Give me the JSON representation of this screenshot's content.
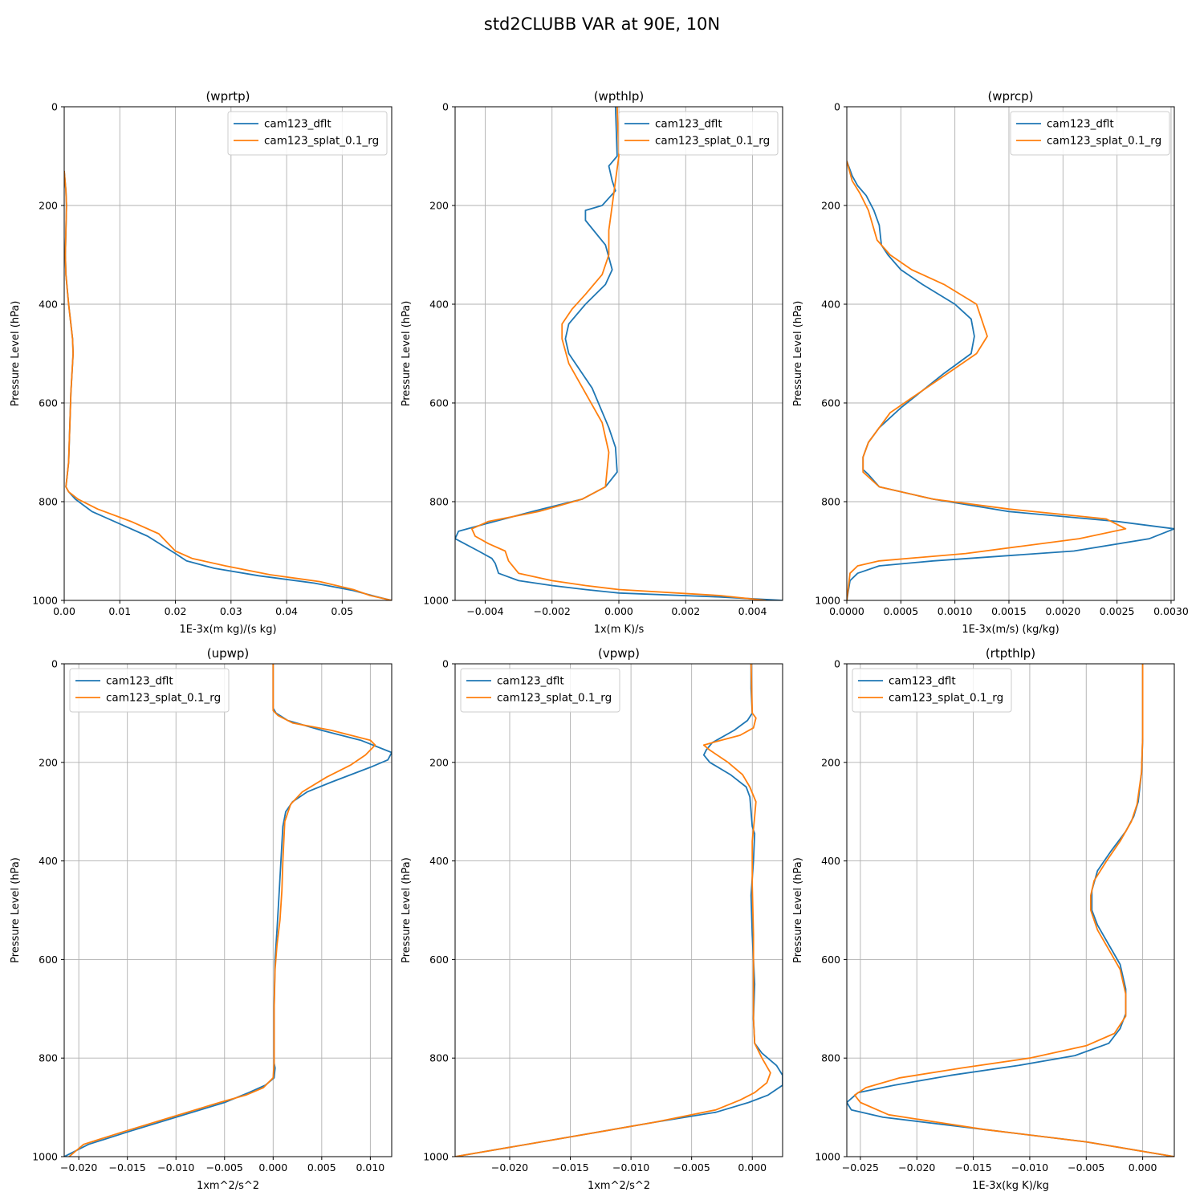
{
  "suptitle": "std2CLUBB VAR at 90E, 10N",
  "colors": {
    "dflt": "#1f77b4",
    "splat": "#ff7f0e"
  },
  "chart_data": [
    {
      "type": "line",
      "title": "(wprtp)",
      "xlabel": "1E-3x(m kg)/(s kg)",
      "ylabel": "Pressure Level (hPa)",
      "xlim": [
        0.0,
        0.0589
      ],
      "ylim": [
        1000,
        0
      ],
      "xticks": [
        0.0,
        0.01,
        0.02,
        0.03,
        0.04,
        0.05
      ],
      "xticklabels": [
        "0.00",
        "0.01",
        "0.02",
        "0.03",
        "0.04",
        "0.05"
      ],
      "yticks": [
        0,
        200,
        400,
        600,
        800,
        1000
      ],
      "yticklabels": [
        "0",
        "200",
        "400",
        "600",
        "800",
        "1000"
      ],
      "legend": "top-right",
      "grid": true,
      "series": [
        {
          "name": "cam123_dflt",
          "color": "#1f77b4",
          "x": [
            0.0,
            0.0003,
            0.0004,
            0.0003,
            0.0002,
            0.0003,
            0.0008,
            0.0015,
            0.0016,
            0.0012,
            0.001,
            0.0008,
            0.0005,
            0.0003,
            0.0008,
            0.002,
            0.005,
            0.01,
            0.015,
            0.02,
            0.022,
            0.027,
            0.035,
            0.045,
            0.052,
            0.056,
            0.0589
          ],
          "y": [
            130,
            170,
            200,
            250,
            300,
            340,
            400,
            470,
            500,
            580,
            650,
            720,
            750,
            770,
            780,
            795,
            820,
            845,
            870,
            905,
            920,
            935,
            950,
            965,
            980,
            992,
            1000
          ]
        },
        {
          "name": "cam123_splat_0.1_rg",
          "color": "#ff7f0e",
          "x": [
            0.0,
            0.0003,
            0.0004,
            0.0003,
            0.0002,
            0.0003,
            0.0008,
            0.0015,
            0.0016,
            0.0012,
            0.001,
            0.0008,
            0.0005,
            0.0003,
            0.0008,
            0.0025,
            0.006,
            0.012,
            0.017,
            0.02,
            0.023,
            0.029,
            0.037,
            0.046,
            0.052,
            0.055,
            0.0589
          ],
          "y": [
            130,
            170,
            200,
            250,
            300,
            340,
            400,
            470,
            500,
            580,
            650,
            720,
            750,
            770,
            780,
            795,
            815,
            840,
            865,
            900,
            915,
            930,
            948,
            962,
            978,
            990,
            1000
          ]
        }
      ]
    },
    {
      "type": "line",
      "title": "(wpthlp)",
      "xlabel": "1x(m K)/s",
      "ylabel": "Pressure Level (hPa)",
      "xlim": [
        -0.0049,
        0.0049
      ],
      "ylim": [
        1000,
        0
      ],
      "xticks": [
        -0.004,
        -0.002,
        0.0,
        0.002,
        0.004
      ],
      "xticklabels": [
        "−0.004",
        "−0.002",
        "0.000",
        "0.002",
        "0.004"
      ],
      "yticks": [
        0,
        200,
        400,
        600,
        800,
        1000
      ],
      "yticklabels": [
        "0",
        "200",
        "400",
        "600",
        "800",
        "1000"
      ],
      "legend": "top-right",
      "grid": true,
      "series": [
        {
          "name": "cam123_dflt",
          "color": "#1f77b4",
          "x": [
            -0.0001,
            -5e-05,
            -0.0003,
            -0.0002,
            -0.0001,
            -0.0005,
            -0.001,
            -0.001,
            -0.0004,
            -0.0002,
            -0.0004,
            -0.001,
            -0.0015,
            -0.0016,
            -0.0015,
            -0.0008,
            -0.0003,
            -0.0001,
            -5e-05,
            -0.0004,
            -0.0011,
            -0.0023,
            -0.004,
            -0.0048,
            -0.0049,
            -0.0042,
            -0.0038,
            -0.0037,
            -0.0036,
            -0.003,
            -0.002,
            -0.001,
            0.0,
            0.003,
            0.0049
          ],
          "y": [
            0,
            100,
            120,
            150,
            170,
            200,
            210,
            230,
            280,
            330,
            360,
            400,
            440,
            470,
            500,
            570,
            650,
            690,
            740,
            770,
            795,
            815,
            845,
            860,
            875,
            900,
            915,
            925,
            945,
            960,
            970,
            978,
            985,
            993,
            1000
          ]
        },
        {
          "name": "cam123_splat_0.1_rg",
          "color": "#ff7f0e",
          "x": [
            -5e-05,
            0.0,
            -0.0001,
            -0.0002,
            -0.0003,
            -0.0003,
            -0.0005,
            -0.001,
            -0.0014,
            -0.0017,
            -0.0017,
            -0.0015,
            -0.001,
            -0.0005,
            -0.0003,
            -0.0004,
            -0.0011,
            -0.0024,
            -0.0039,
            -0.0044,
            -0.0043,
            -0.0039,
            -0.0034,
            -0.0033,
            -0.003,
            -0.002,
            -0.001,
            0.0,
            0.003,
            0.0044
          ],
          "y": [
            0,
            100,
            150,
            200,
            250,
            300,
            340,
            380,
            410,
            440,
            470,
            520,
            580,
            640,
            700,
            770,
            795,
            820,
            840,
            855,
            870,
            885,
            900,
            920,
            945,
            960,
            970,
            978,
            990,
            1000
          ]
        }
      ]
    },
    {
      "type": "line",
      "title": "(wprcp)",
      "xlabel": "1E-3x(m/s) (kg/kg)",
      "ylabel": "Pressure Level (hPa)",
      "xlim": [
        0.0,
        0.00303
      ],
      "ylim": [
        1000,
        0
      ],
      "xticks": [
        0.0,
        0.0005,
        0.001,
        0.0015,
        0.002,
        0.0025,
        0.003
      ],
      "xticklabels": [
        "0.0000",
        "0.0005",
        "0.0010",
        "0.0015",
        "0.0020",
        "0.0025",
        "0.0030"
      ],
      "yticks": [
        0,
        200,
        400,
        600,
        800,
        1000
      ],
      "yticklabels": [
        "0",
        "200",
        "400",
        "600",
        "800",
        "1000"
      ],
      "legend": "top-right",
      "grid": true,
      "series": [
        {
          "name": "cam123_dflt",
          "color": "#1f77b4",
          "x": [
            0.0,
            5e-05,
            0.0001,
            0.00018,
            0.00025,
            0.0003,
            0.00032,
            0.00038,
            0.0005,
            0.0007,
            0.001,
            0.00115,
            0.00118,
            0.00115,
            0.0009,
            0.0007,
            0.0005,
            0.0003,
            0.0002,
            0.00015,
            0.00015,
            0.0002,
            0.0003,
            0.0008,
            0.0015,
            0.0025,
            0.00303,
            0.0028,
            0.0021,
            0.0008,
            0.0003,
            0.0001,
            3e-05,
            0.0
          ],
          "y": [
            110,
            140,
            160,
            180,
            210,
            240,
            280,
            300,
            330,
            360,
            400,
            430,
            465,
            500,
            540,
            575,
            610,
            650,
            680,
            710,
            735,
            745,
            770,
            795,
            820,
            840,
            855,
            875,
            900,
            920,
            930,
            945,
            960,
            1000
          ]
        },
        {
          "name": "cam123_splat_0.1_rg",
          "color": "#ff7f0e",
          "x": [
            0.0,
            5e-05,
            0.00012,
            0.0002,
            0.00028,
            0.0004,
            0.0006,
            0.0009,
            0.0012,
            0.0013,
            0.0012,
            0.0009,
            0.0006,
            0.0004,
            0.0003,
            0.0002,
            0.00015,
            0.00015,
            0.0003,
            0.0008,
            0.0015,
            0.0024,
            0.00258,
            0.00215,
            0.0011,
            0.0003,
            0.0001,
            3e-05,
            0.0
          ],
          "y": [
            110,
            150,
            175,
            210,
            270,
            300,
            330,
            360,
            400,
            465,
            500,
            545,
            590,
            620,
            650,
            680,
            710,
            740,
            770,
            795,
            815,
            835,
            855,
            875,
            905,
            920,
            930,
            945,
            1000
          ]
        }
      ]
    },
    {
      "type": "line",
      "title": "(upwp)",
      "xlabel": "1xm^2/s^2",
      "ylabel": "Pressure Level (hPa)",
      "xlim": [
        -0.0215,
        0.0122
      ],
      "ylim": [
        1000,
        0
      ],
      "xticks": [
        -0.02,
        -0.015,
        -0.01,
        -0.005,
        0.0,
        0.005,
        0.01
      ],
      "xticklabels": [
        "−0.020",
        "−0.015",
        "−0.010",
        "−0.005",
        "0.000",
        "0.005",
        "0.010"
      ],
      "yticks": [
        0,
        200,
        400,
        600,
        800,
        1000
      ],
      "yticklabels": [
        "0",
        "200",
        "400",
        "600",
        "800",
        "1000"
      ],
      "legend": "top-left",
      "grid": true,
      "series": [
        {
          "name": "cam123_dflt",
          "color": "#1f77b4",
          "x": [
            0.0,
            0.0,
            0.0003,
            0.0015,
            0.005,
            0.009,
            0.0122,
            0.0118,
            0.01,
            0.006,
            0.0035,
            0.002,
            0.0013,
            0.001,
            0.0008,
            0.0006,
            0.0004,
            0.0002,
            0.0001,
            0.0001,
            0.0001,
            0.0002,
            0.0001,
            -0.0008,
            -0.0025,
            -0.005,
            -0.01,
            -0.015,
            -0.019,
            -0.0215
          ],
          "y": [
            0,
            90,
            100,
            115,
            135,
            155,
            180,
            195,
            210,
            240,
            260,
            280,
            300,
            330,
            400,
            470,
            540,
            600,
            700,
            780,
            810,
            820,
            840,
            855,
            870,
            890,
            920,
            950,
            975,
            1000
          ]
        },
        {
          "name": "cam123_splat_0.1_rg",
          "color": "#ff7f0e",
          "x": [
            0.0,
            0.0,
            0.0005,
            0.002,
            0.006,
            0.01,
            0.0105,
            0.0095,
            0.008,
            0.0055,
            0.003,
            0.0018,
            0.0012,
            0.001,
            0.0009,
            0.0007,
            0.0004,
            0.0002,
            0.0001,
            0.0001,
            0.0001,
            0.0,
            -0.001,
            -0.0028,
            -0.0055,
            -0.0105,
            -0.0155,
            -0.0195,
            -0.021
          ],
          "y": [
            0,
            95,
            105,
            120,
            135,
            155,
            165,
            185,
            205,
            230,
            260,
            285,
            320,
            400,
            460,
            520,
            570,
            620,
            700,
            780,
            810,
            840,
            860,
            875,
            890,
            920,
            950,
            975,
            1000
          ]
        }
      ]
    },
    {
      "type": "line",
      "title": "(vpwp)",
      "xlabel": "1xm^2/s^2",
      "ylabel": "Pressure Level (hPa)",
      "xlim": [
        -0.0245,
        0.0025
      ],
      "ylim": [
        1000,
        0
      ],
      "xticks": [
        -0.02,
        -0.015,
        -0.01,
        -0.005,
        0.0
      ],
      "xticklabels": [
        "−0.020",
        "−0.015",
        "−0.010",
        "−0.005",
        "0.000"
      ],
      "yticks": [
        0,
        200,
        400,
        600,
        800,
        1000
      ],
      "yticklabels": [
        "0",
        "200",
        "400",
        "600",
        "800",
        "1000"
      ],
      "legend": "top-left",
      "grid": true,
      "series": [
        {
          "name": "cam123_dflt",
          "color": "#1f77b4",
          "x": [
            -0.0001,
            -0.0001,
            0.0,
            -0.0004,
            -0.0015,
            -0.0033,
            -0.0038,
            -0.004,
            -0.0035,
            -0.0018,
            -0.0005,
            -0.0002,
            -0.0001,
            0.0,
            0.0002,
            0.0001,
            -0.0001,
            0.0,
            0.0001,
            0.0002,
            0.0001,
            0.0002,
            0.0008,
            0.002,
            0.0025,
            0.0025,
            0.0013,
            -0.0003,
            -0.003,
            -0.008,
            -0.015,
            -0.0245
          ],
          "y": [
            0,
            50,
            100,
            115,
            135,
            160,
            175,
            185,
            200,
            225,
            250,
            270,
            300,
            330,
            345,
            400,
            470,
            550,
            600,
            650,
            720,
            770,
            790,
            815,
            835,
            855,
            875,
            890,
            910,
            930,
            960,
            1000
          ]
        },
        {
          "name": "cam123_splat_0.1_rg",
          "color": "#ff7f0e",
          "x": [
            -0.0001,
            0.0,
            0.0003,
            0.0001,
            -0.001,
            -0.003,
            -0.004,
            -0.0035,
            -0.002,
            -0.0008,
            -0.0002,
            0.0003,
            0.0002,
            0.0,
            0.0,
            0.0001,
            0.0001,
            0.0001,
            0.0002,
            0.0008,
            0.0015,
            0.0012,
            0.0002,
            -0.001,
            -0.003,
            -0.008,
            -0.015,
            -0.0245
          ],
          "y": [
            0,
            100,
            110,
            130,
            145,
            158,
            165,
            175,
            200,
            225,
            250,
            280,
            310,
            360,
            450,
            550,
            650,
            720,
            770,
            800,
            830,
            850,
            870,
            885,
            905,
            930,
            960,
            1000
          ]
        }
      ]
    },
    {
      "type": "line",
      "title": "(rtpthlp)",
      "xlabel": "1E-3x(kg K)/kg",
      "ylabel": "Pressure Level (hPa)",
      "xlim": [
        -0.0262,
        0.0028
      ],
      "ylim": [
        1000,
        0
      ],
      "xticks": [
        -0.025,
        -0.02,
        -0.015,
        -0.01,
        -0.005,
        0.0
      ],
      "xticklabels": [
        "−0.025",
        "−0.020",
        "−0.015",
        "−0.010",
        "−0.005",
        "0.000"
      ],
      "yticks": [
        0,
        200,
        400,
        600,
        800,
        1000
      ],
      "yticklabels": [
        "0",
        "200",
        "400",
        "600",
        "800",
        "1000"
      ],
      "legend": "top-left",
      "grid": true,
      "series": [
        {
          "name": "cam123_dflt",
          "color": "#1f77b4",
          "x": [
            0.0,
            0.0,
            -0.0001,
            -0.0004,
            -0.0008,
            -0.0015,
            -0.0028,
            -0.004,
            -0.0045,
            -0.0045,
            -0.004,
            -0.003,
            -0.002,
            -0.0015,
            -0.0015,
            -0.002,
            -0.003,
            -0.006,
            -0.011,
            -0.017,
            -0.022,
            -0.0252,
            -0.0262,
            -0.0258,
            -0.023,
            -0.014,
            -0.005,
            0.0028
          ],
          "y": [
            0,
            150,
            220,
            280,
            310,
            340,
            380,
            420,
            460,
            500,
            530,
            570,
            610,
            660,
            710,
            740,
            770,
            795,
            815,
            835,
            855,
            870,
            890,
            905,
            920,
            945,
            970,
            1000
          ]
        },
        {
          "name": "cam123_splat_0.1_rg",
          "color": "#ff7f0e",
          "x": [
            0.0,
            0.0,
            -0.0001,
            -0.0005,
            -0.001,
            -0.002,
            -0.0032,
            -0.0043,
            -0.0046,
            -0.0046,
            -0.004,
            -0.003,
            -0.002,
            -0.0015,
            -0.0015,
            -0.0025,
            -0.005,
            -0.01,
            -0.016,
            -0.0215,
            -0.0245,
            -0.0255,
            -0.025,
            -0.0225,
            -0.014,
            -0.005,
            0.0028
          ],
          "y": [
            0,
            150,
            220,
            285,
            320,
            360,
            400,
            440,
            470,
            500,
            540,
            580,
            620,
            670,
            715,
            750,
            775,
            800,
            820,
            840,
            860,
            875,
            890,
            915,
            945,
            970,
            1000
          ]
        }
      ]
    }
  ]
}
